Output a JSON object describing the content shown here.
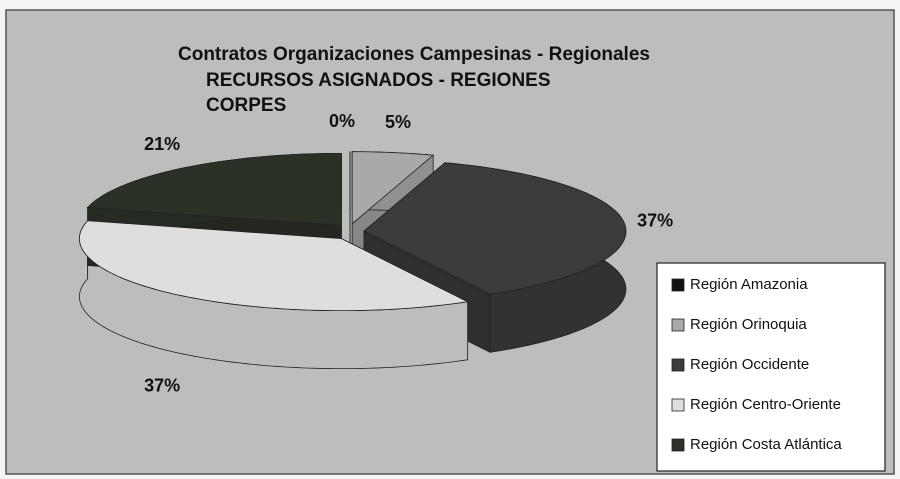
{
  "chart_data": {
    "type": "pie3d",
    "title": [
      "Contratos Organizaciones Campesinas - Regionales",
      "RECURSOS ASIGNADOS - REGIONES",
      "CORPES"
    ],
    "categories": [
      "Región Amazonia",
      "Región Orinoquia",
      "Región Occidente",
      "Región Centro-Oriente",
      "Región Costa Atlántica"
    ],
    "values": [
      0,
      5,
      37,
      37,
      21
    ],
    "value_labels": [
      "0%",
      "5%",
      "37%",
      "37%",
      "21%"
    ],
    "colors": [
      "#111111",
      "#a9a9a9",
      "#3b3b3b",
      "#dedede",
      "#2c3128"
    ],
    "legend": "right"
  }
}
